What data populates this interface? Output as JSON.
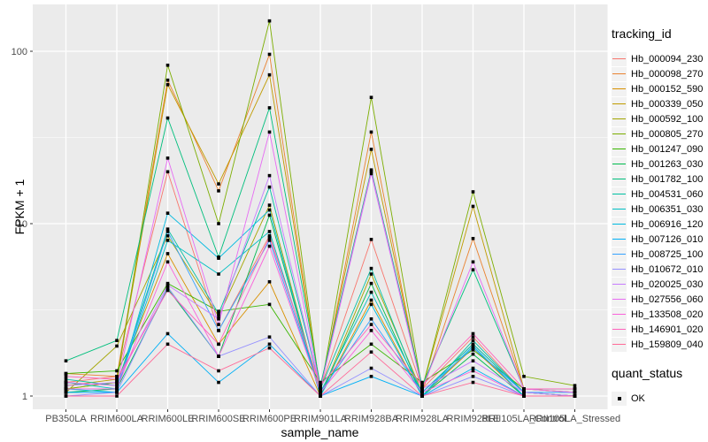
{
  "chart_data": {
    "type": "line",
    "title": "",
    "xlabel": "sample_name",
    "ylabel": "FPKM + 1",
    "y_scale": "log10",
    "y_ticks": [
      1,
      10,
      100
    ],
    "y_minor_ticks": [
      3.162,
      31.62
    ],
    "ylim": [
      1,
      160
    ],
    "grid": true,
    "legend_position": "right",
    "panel_bg": "#EBEBEB",
    "grid_color": "#FFFFFF",
    "point_color": "#000000",
    "tick_label_color": "#4D4D4D",
    "categories": [
      "PB350LA",
      "RRIM600LA",
      "RRIM600LE",
      "RRIM600SE",
      "RRIM600PE",
      "RRIM901LA",
      "RRIM928BA",
      "RRIM928LA",
      "RRIM928LE",
      "RRII105LA_Control",
      "RRII105LA_Stressed"
    ],
    "series": [
      {
        "name": "Hb_000094_230",
        "color": "#F8766D",
        "values": [
          1.2,
          1.3,
          20,
          2.4,
          8.5,
          1.1,
          8.1,
          1.1,
          2.2,
          1.05,
          1.0
        ]
      },
      {
        "name": "Hb_000098_270",
        "color": "#EA8331",
        "values": [
          1.35,
          1.3,
          68,
          15.5,
          96,
          1.05,
          34,
          1.05,
          8.2,
          1.1,
          1.05
        ]
      },
      {
        "name": "Hb_000152_590",
        "color": "#D89000",
        "values": [
          1.1,
          1.2,
          6.7,
          2.0,
          4.6,
          1.0,
          3.6,
          1.0,
          1.9,
          1.0,
          1.0
        ]
      },
      {
        "name": "Hb_000339_050",
        "color": "#C09B00",
        "values": [
          1.15,
          1.25,
          64,
          17,
          73,
          1.1,
          27,
          1.1,
          12.6,
          1.1,
          1.05
        ]
      },
      {
        "name": "Hb_000592_100",
        "color": "#A3A500",
        "values": [
          1.05,
          1.95,
          8.5,
          2.9,
          12.8,
          1.0,
          5.1,
          1.05,
          2.0,
          1.05,
          1.0
        ]
      },
      {
        "name": "Hb_000805_270",
        "color": "#7CAE00",
        "values": [
          1.1,
          1.2,
          83,
          10,
          150,
          1.05,
          54,
          1.1,
          15.3,
          1.3,
          1.15
        ]
      },
      {
        "name": "Hb_001247_090",
        "color": "#39B600",
        "values": [
          1.35,
          1.4,
          4.5,
          3.1,
          3.4,
          1.2,
          2.0,
          1.2,
          1.85,
          1.1,
          1.1
        ]
      },
      {
        "name": "Hb_001263_030",
        "color": "#00BB4E",
        "values": [
          1.05,
          1.1,
          4.2,
          1.7,
          11.2,
          1.0,
          4.5,
          1.0,
          1.75,
          1.0,
          1.0
        ]
      },
      {
        "name": "Hb_001782_100",
        "color": "#00BF7D",
        "values": [
          1.6,
          2.1,
          41,
          6.4,
          47,
          1.15,
          20.5,
          1.15,
          5.4,
          1.1,
          1.1
        ]
      },
      {
        "name": "Hb_004531_060",
        "color": "#00C1A3",
        "values": [
          1.25,
          1.15,
          9.3,
          3.0,
          16.3,
          1.1,
          5.5,
          1.0,
          2.1,
          1.05,
          1.0
        ]
      },
      {
        "name": "Hb_006351_030",
        "color": "#00BFC4",
        "values": [
          1.2,
          1.1,
          8.0,
          5.1,
          9.0,
          1.05,
          4.0,
          1.05,
          2.0,
          1.05,
          1.0
        ]
      },
      {
        "name": "Hb_006916_120",
        "color": "#00BAE0",
        "values": [
          1.1,
          1.05,
          11.5,
          6.3,
          12.0,
          1.0,
          3.4,
          1.0,
          1.95,
          1.0,
          1.0
        ]
      },
      {
        "name": "Hb_007126_010",
        "color": "#00B0F6",
        "values": [
          1.05,
          1.05,
          2.3,
          1.2,
          2.0,
          1.0,
          1.3,
          1.0,
          1.45,
          1.0,
          1.0
        ]
      },
      {
        "name": "Hb_008725_100",
        "color": "#35A2FF",
        "values": [
          1.1,
          1.1,
          9.0,
          2.4,
          8.0,
          1.05,
          2.8,
          1.05,
          1.9,
          1.05,
          1.05
        ]
      },
      {
        "name": "Hb_010672_010",
        "color": "#9590FF",
        "values": [
          1.0,
          1.05,
          4.3,
          1.7,
          2.2,
          1.0,
          1.45,
          1.0,
          1.3,
          1.0,
          1.0
        ]
      },
      {
        "name": "Hb_020025_030",
        "color": "#C77CFF",
        "values": [
          1.15,
          1.2,
          4.4,
          2.8,
          19.0,
          1.1,
          19.5,
          1.1,
          1.6,
          1.05,
          1.0
        ]
      },
      {
        "name": "Hb_027556_060",
        "color": "#E76BF3",
        "values": [
          1.2,
          1.15,
          24,
          2.6,
          34,
          1.1,
          20,
          1.1,
          6.0,
          1.1,
          1.05
        ]
      },
      {
        "name": "Hb_133508_020",
        "color": "#FA62DB",
        "values": [
          1.1,
          1.1,
          6.0,
          1.7,
          7.4,
          1.05,
          2.4,
          1.05,
          1.4,
          1.0,
          1.0
        ]
      },
      {
        "name": "Hb_146901_020",
        "color": "#FF62BC",
        "values": [
          1.3,
          1.25,
          4.1,
          2.0,
          8.3,
          1.15,
          2.6,
          1.15,
          2.3,
          1.1,
          1.1
        ]
      },
      {
        "name": "Hb_159809_040",
        "color": "#FF6A98",
        "values": [
          1.0,
          1.0,
          2.0,
          1.4,
          1.9,
          1.0,
          1.8,
          1.0,
          1.2,
          1.0,
          1.0
        ]
      }
    ],
    "legend": {
      "color_title": "tracking_id",
      "shape_title": "quant_status",
      "shape_items": [
        {
          "label": "OK",
          "marker": "black-square"
        }
      ]
    }
  }
}
